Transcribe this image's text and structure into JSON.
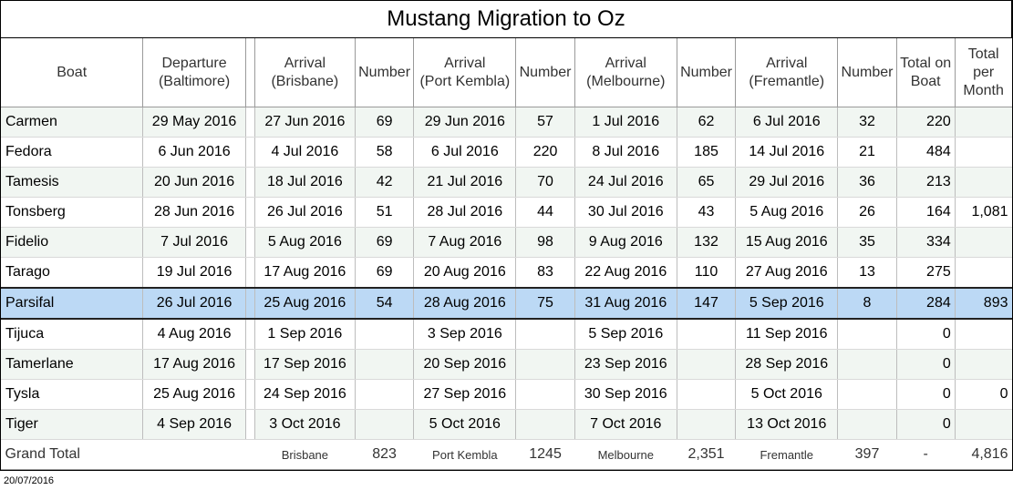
{
  "title": "Mustang Migration to Oz",
  "headers": {
    "boat": "Boat",
    "departure": [
      "Departure",
      "(Baltimore)"
    ],
    "arr_bris": [
      "Arrival",
      "(Brisbane)"
    ],
    "number": "Number",
    "arr_pk": [
      "Arrival",
      "(Port Kembla)"
    ],
    "arr_mel": [
      "Arrival",
      "(Melbourne)"
    ],
    "arr_fre": [
      "Arrival",
      "(Fremantle)"
    ],
    "total_boat": [
      "Total on",
      "Boat"
    ],
    "total_month": [
      "Total",
      "per",
      "Month"
    ]
  },
  "rows": [
    {
      "boat": "Carmen",
      "dep": "29 May 2016",
      "bris": "27 Jun 2016",
      "bn": "69",
      "pk": "29 Jun 2016",
      "pkn": "57",
      "mel": "1 Jul 2016",
      "mn": "62",
      "fre": "6 Jul 2016",
      "fn": "32",
      "tot": "220",
      "month": ""
    },
    {
      "boat": "Fedora",
      "dep": "6 Jun 2016",
      "bris": "4 Jul 2016",
      "bn": "58",
      "pk": "6 Jul 2016",
      "pkn": "220",
      "mel": "8 Jul 2016",
      "mn": "185",
      "fre": "14 Jul 2016",
      "fn": "21",
      "tot": "484",
      "month": ""
    },
    {
      "boat": "Tamesis",
      "dep": "20 Jun 2016",
      "bris": "18 Jul 2016",
      "bn": "42",
      "pk": "21 Jul 2016",
      "pkn": "70",
      "mel": "24 Jul 2016",
      "mn": "65",
      "fre": "29 Jul 2016",
      "fn": "36",
      "tot": "213",
      "month": ""
    },
    {
      "boat": "Tonsberg",
      "dep": "28 Jun 2016",
      "bris": "26 Jul 2016",
      "bn": "51",
      "pk": "28 Jul 2016",
      "pkn": "44",
      "mel": "30 Jul 2016",
      "mn": "43",
      "fre": "5 Aug 2016",
      "fn": "26",
      "tot": "164",
      "month": "1,081"
    },
    {
      "boat": "Fidelio",
      "dep": "7 Jul 2016",
      "bris": "5 Aug 2016",
      "bn": "69",
      "pk": "7 Aug 2016",
      "pkn": "98",
      "mel": "9 Aug 2016",
      "mn": "132",
      "fre": "15 Aug 2016",
      "fn": "35",
      "tot": "334",
      "month": ""
    },
    {
      "boat": "Tarago",
      "dep": "19 Jul 2016",
      "bris": "17 Aug 2016",
      "bn": "69",
      "pk": "20 Aug 2016",
      "pkn": "83",
      "mel": "22 Aug 2016",
      "mn": "110",
      "fre": "27 Aug 2016",
      "fn": "13",
      "tot": "275",
      "month": ""
    },
    {
      "boat": "Parsifal",
      "dep": "26 Jul 2016",
      "bris": "25 Aug 2016",
      "bn": "54",
      "pk": "28 Aug 2016",
      "pkn": "75",
      "mel": "31 Aug 2016",
      "mn": "147",
      "fre": "5 Sep 2016",
      "fn": "8",
      "tot": "284",
      "month": "893"
    },
    {
      "boat": "Tijuca",
      "dep": "4 Aug 2016",
      "bris": "1 Sep 2016",
      "bn": "",
      "pk": "3 Sep 2016",
      "pkn": "",
      "mel": "5 Sep 2016",
      "mn": "",
      "fre": "11 Sep 2016",
      "fn": "",
      "tot": "0",
      "month": ""
    },
    {
      "boat": "Tamerlane",
      "dep": "17 Aug 2016",
      "bris": "17 Sep 2016",
      "bn": "",
      "pk": "20 Sep 2016",
      "pkn": "",
      "mel": "23 Sep 2016",
      "mn": "",
      "fre": "28 Sep 2016",
      "fn": "",
      "tot": "0",
      "month": ""
    },
    {
      "boat": "Tysla",
      "dep": "25 Aug 2016",
      "bris": "24 Sep 2016",
      "bn": "",
      "pk": "27 Sep 2016",
      "pkn": "",
      "mel": "30 Sep 2016",
      "mn": "",
      "fre": "5 Oct 2016",
      "fn": "",
      "tot": "0",
      "month": "0"
    },
    {
      "boat": "Tiger",
      "dep": "4 Sep 2016",
      "bris": "3 Oct 2016",
      "bn": "",
      "pk": "5 Oct 2016",
      "pkn": "",
      "mel": "7 Oct 2016",
      "mn": "",
      "fre": "13 Oct 2016",
      "fn": "",
      "tot": "0",
      "month": ""
    }
  ],
  "selected_row": "Parsifal",
  "grand": {
    "label": "Grand Total",
    "bris_label": "Brisbane",
    "bris_total": "823",
    "pk_label": "Port Kembla",
    "pk_total": "1245",
    "mel_label": "Melbourne",
    "mel_total": "2,351",
    "fre_label": "Fremantle",
    "fre_total": "397",
    "boat_total": "-",
    "month_total": "4,816"
  },
  "footer_date": "20/07/2016",
  "colors": {
    "band": "#f1f6f2",
    "selected": "#bcd9f5"
  }
}
